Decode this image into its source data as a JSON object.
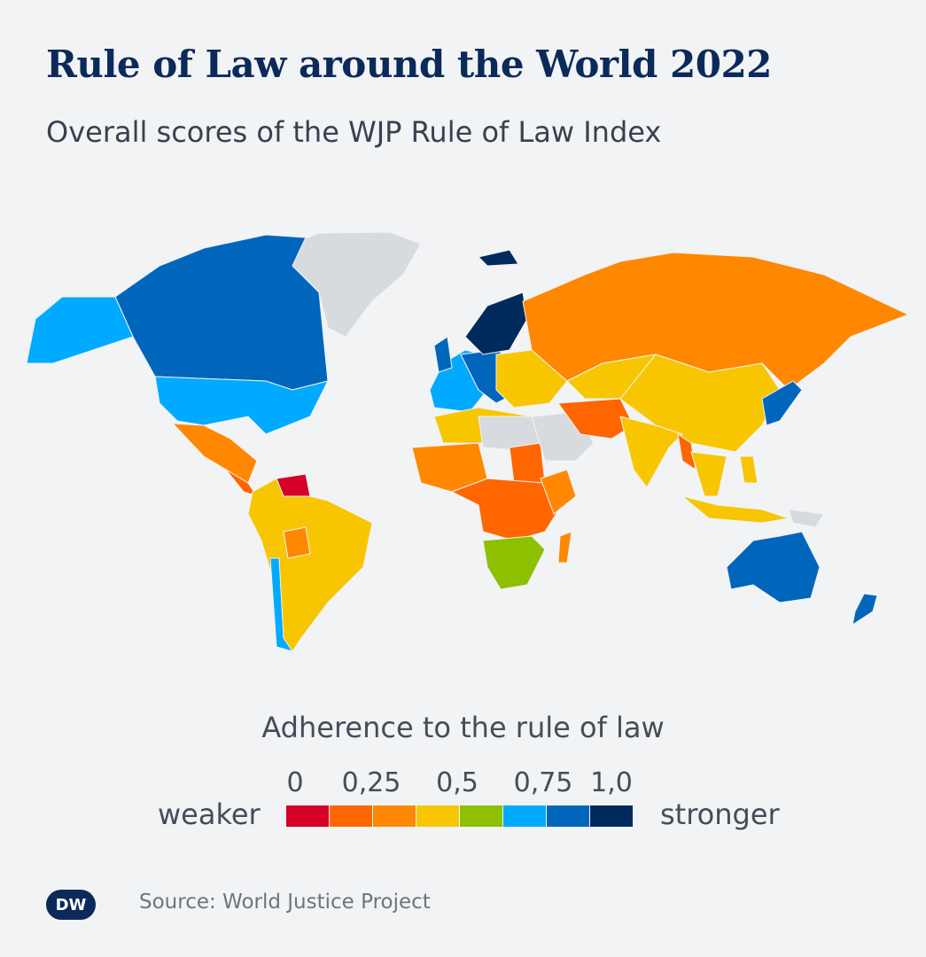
{
  "title": "Rule of Law around the World 2022",
  "subtitle": "Overall scores of the WJP Rule of Law Index",
  "legend": {
    "title": "Adherence to the rule of law",
    "ticks": [
      "0",
      "0,25",
      "0,5",
      "0,75",
      "1,0"
    ],
    "low_label": "weaker",
    "high_label": "stronger",
    "colors": [
      "#d40026",
      "#ff6600",
      "#ff8800",
      "#f7c600",
      "#8cc000",
      "#00aaff",
      "#0066bb",
      "#002a5c"
    ],
    "no_data_color": "#d7dbe0"
  },
  "source": "Source: World Justice Project",
  "logo": "DW"
}
